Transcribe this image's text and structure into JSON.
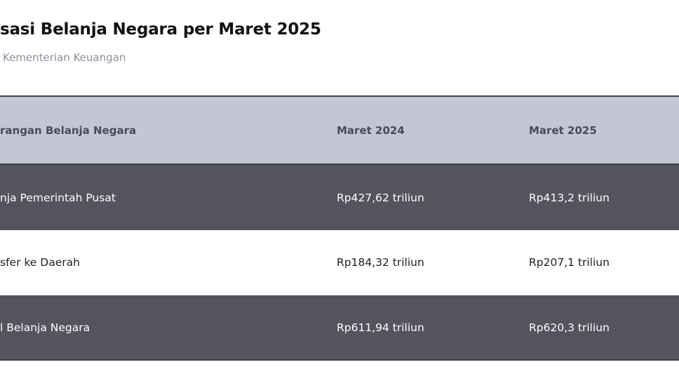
{
  "title": "sasi Belanja Negara per Maret 2025",
  "subtitle": "Kementerian Keuangan",
  "table": {
    "headers": [
      "rangan Belanja Negara",
      "Maret 2024",
      "Maret 2025"
    ],
    "rows": [
      [
        "nja Pemerintah Pusat",
        "Rp427,62 triliun",
        "Rp413,2 triliun"
      ],
      [
        "sfer ke Daerah",
        "Rp184,32 triliun",
        "Rp207,1 triliun"
      ],
      [
        "l Belanja Negara",
        "Rp611,94 triliun",
        "Rp620,3 triliun"
      ]
    ]
  },
  "colors": {
    "header_bg": "#c5c6d3",
    "dark_row": "#54545e",
    "light_row": "#ffffff"
  }
}
